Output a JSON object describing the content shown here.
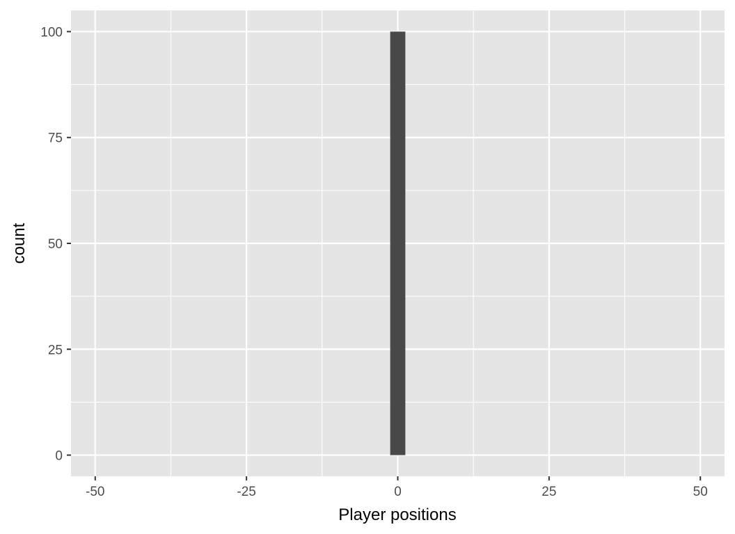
{
  "chart_data": {
    "type": "bar",
    "title": "",
    "xlabel": "Player positions",
    "ylabel": "count",
    "xlim": [
      -54,
      54
    ],
    "ylim": [
      -5,
      105
    ],
    "x_ticks": [
      -50,
      -25,
      0,
      25,
      50
    ],
    "x_tick_labels": [
      "-50",
      "-25",
      "0",
      "25",
      "50"
    ],
    "y_ticks": [
      0,
      25,
      50,
      75,
      100
    ],
    "y_tick_labels": [
      "0",
      "25",
      "50",
      "75",
      "100"
    ],
    "bins": [
      {
        "x_start": -1.25,
        "x_end": 1.25,
        "value": 100
      }
    ],
    "grid": true,
    "colors": {
      "panel_background": "#e5e5e5",
      "grid": "#ffffff",
      "bar": "#484848"
    }
  }
}
